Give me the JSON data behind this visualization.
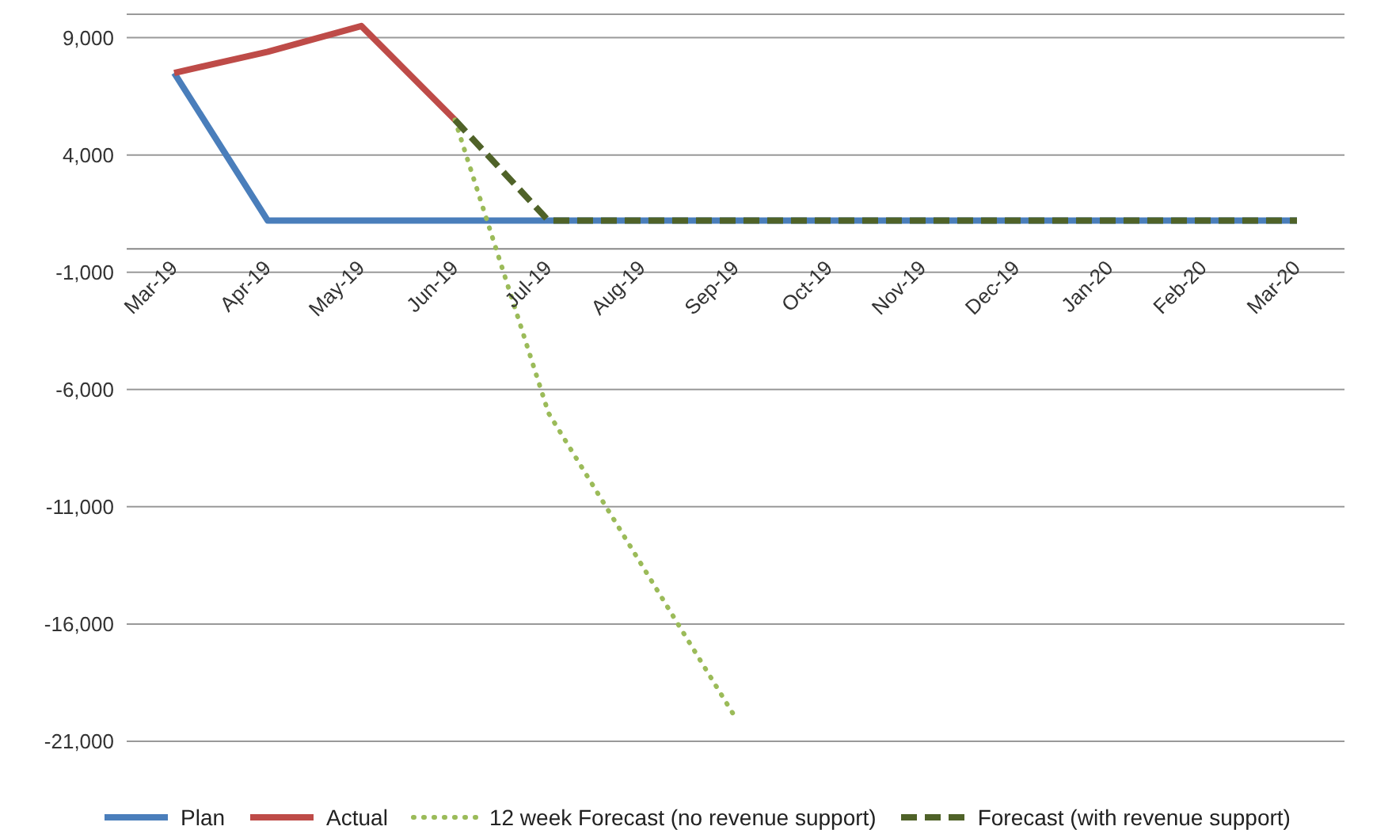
{
  "chart_data": {
    "type": "line",
    "categories": [
      "Mar-19",
      "Apr-19",
      "May-19",
      "Jun-19",
      "Jul-19",
      "Aug-19",
      "Sep-19",
      "Oct-19",
      "Nov-19",
      "Dec-19",
      "Jan-20",
      "Feb-20",
      "Mar-20"
    ],
    "series": [
      {
        "name": "Plan",
        "color": "#4a7ebb",
        "line_style": "solid",
        "values": [
          7500,
          1200,
          1200,
          1200,
          1200,
          1200,
          1200,
          1200,
          1200,
          1200,
          1200,
          1200,
          1200
        ]
      },
      {
        "name": "Actual",
        "color": "#be4b48",
        "line_style": "solid",
        "values": [
          7500,
          8400,
          9500,
          5500,
          null,
          null,
          null,
          null,
          null,
          null,
          null,
          null,
          null
        ]
      },
      {
        "name": "12 week Forecast (no revenue support)",
        "color": "#9bbb59",
        "line_style": "dotted",
        "values": [
          null,
          null,
          null,
          5500,
          -7000,
          -13500,
          -20000,
          null,
          null,
          null,
          null,
          null,
          null
        ]
      },
      {
        "name": "Forecast (with revenue support)",
        "color": "#4f6228",
        "line_style": "dashed",
        "values": [
          null,
          null,
          null,
          5500,
          1200,
          1200,
          1200,
          1200,
          1200,
          1200,
          1200,
          1200,
          1200
        ]
      }
    ],
    "ylim": [
      -21000,
      10000
    ],
    "yticks": [
      {
        "value": -21000,
        "label": "-21,000"
      },
      {
        "value": -16000,
        "label": "-16,000"
      },
      {
        "value": -11000,
        "label": "-11,000"
      },
      {
        "value": -6000,
        "label": "-6,000"
      },
      {
        "value": -1000,
        "label": "-1,000"
      },
      {
        "value": 4000,
        "label": "4,000"
      },
      {
        "value": 9000,
        "label": "9,000"
      }
    ],
    "grid": "y",
    "legend": "bottom",
    "marker": "none"
  }
}
